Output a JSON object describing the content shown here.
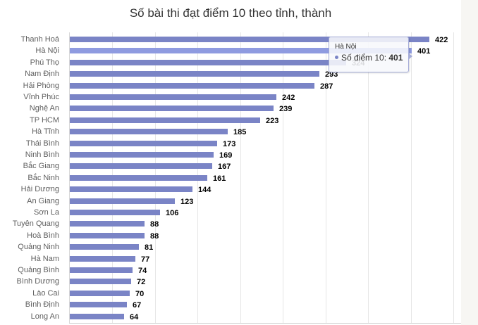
{
  "chart_data": {
    "type": "bar",
    "orientation": "horizontal",
    "title": "Số bài thi đạt điểm 10 theo tỉnh, thành",
    "xlabel": "",
    "ylabel": "",
    "xlim": [
      0,
      450
    ],
    "grid": true,
    "gridlines_every": 50,
    "series_name": "Số điểm 10",
    "bar_color": "#7a84c6",
    "highlight_color": "#8f9be0",
    "categories": [
      "Thanh Hoá",
      "Hà Nội",
      "Phú Thọ",
      "Nam Định",
      "Hải Phòng",
      "Vĩnh Phúc",
      "Nghệ An",
      "TP HCM",
      "Hà Tĩnh",
      "Thái Bình",
      "Ninh Bình",
      "Bắc Giang",
      "Bắc Ninh",
      "Hải Dương",
      "An Giang",
      "Sơn La",
      "Tuyên Quang",
      "Hoà Bình",
      "Quảng Ninh",
      "Hà Nam",
      "Quảng Bình",
      "Bình Dương",
      "Lào Cai",
      "Bình Định",
      "Long An"
    ],
    "values": [
      422,
      401,
      324,
      293,
      287,
      242,
      239,
      223,
      185,
      173,
      169,
      167,
      161,
      144,
      123,
      106,
      88,
      88,
      81,
      77,
      74,
      72,
      70,
      67,
      64
    ],
    "highlighted_index": 1
  },
  "tooltip": {
    "header": "Hà Nội",
    "series_label": "Số điểm 10: ",
    "value": "401"
  }
}
